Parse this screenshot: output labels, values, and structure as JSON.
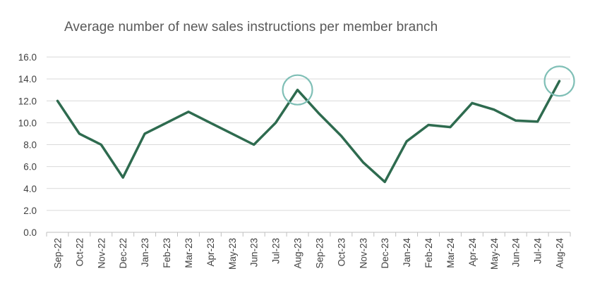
{
  "colors": {
    "line": "#2e6b4f",
    "highlight": "#7fbfb6",
    "grid": "#d9d9d9",
    "axis": "#bfbfbf",
    "text": "#404040"
  },
  "chart_data": {
    "type": "line",
    "title": "Average number of new sales instructions per member branch",
    "xlabel": "",
    "ylabel": "",
    "ylim": [
      0,
      16
    ],
    "yticks": [
      "0.0",
      "2.0",
      "4.0",
      "6.0",
      "8.0",
      "10.0",
      "12.0",
      "14.0",
      "16.0"
    ],
    "grid": true,
    "legend": "none",
    "categories": [
      "Sep-22",
      "Oct-22",
      "Nov-22",
      "Dec-22",
      "Jan-23",
      "Feb-23",
      "Mar-23",
      "Apr-23",
      "May-23",
      "Jun-23",
      "Jul-23",
      "Aug-23",
      "Sep-23",
      "Oct-23",
      "Nov-23",
      "Dec-23",
      "Jan-24",
      "Feb-24",
      "Mar-24",
      "Apr-24",
      "May-24",
      "Jun-24",
      "Jul-24",
      "Aug-24"
    ],
    "series": [
      {
        "values": [
          12.0,
          9.0,
          8.0,
          5.0,
          9.0,
          10.0,
          11.0,
          10.0,
          9.0,
          8.0,
          10.0,
          13.0,
          10.8,
          8.8,
          6.4,
          4.6,
          8.3,
          9.8,
          9.6,
          11.8,
          11.2,
          10.2,
          10.1,
          13.8
        ]
      }
    ],
    "highlighted_points": [
      "Aug-23",
      "Aug-24"
    ]
  }
}
